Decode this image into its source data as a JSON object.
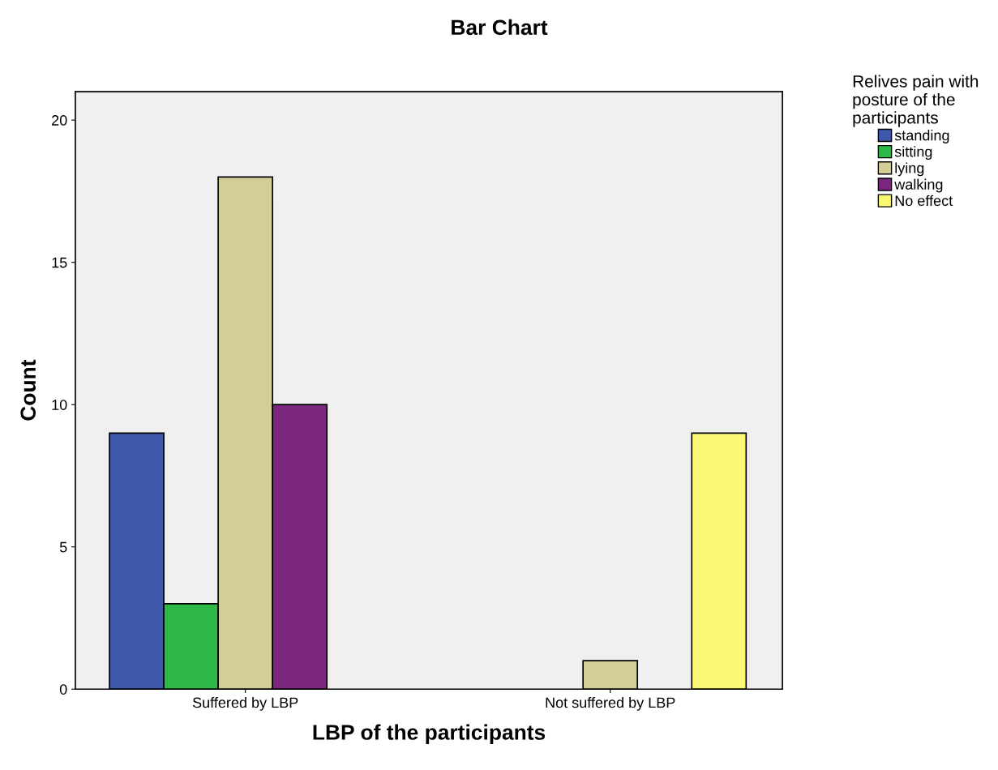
{
  "chart_data": {
    "type": "bar",
    "title": "Bar Chart",
    "xlabel": "LBP of the participants",
    "ylabel": "Count",
    "legend_title": "Relives pain with\nposture of the\nparticipants",
    "categories": [
      "Suffered by LBP",
      "Not suffered by LBP"
    ],
    "series": [
      {
        "name": "standing",
        "color": "#3e58ac",
        "values": [
          9,
          null
        ]
      },
      {
        "name": "sitting",
        "color": "#2eb848",
        "values": [
          3,
          null
        ]
      },
      {
        "name": "lying",
        "color": "#d3ce97",
        "values": [
          18,
          1
        ]
      },
      {
        "name": "walking",
        "color": "#7b277d",
        "values": [
          10,
          null
        ]
      },
      {
        "name": "No effect",
        "color": "#fbf873",
        "values": [
          null,
          9
        ]
      }
    ],
    "ylim": [
      0,
      21
    ],
    "yticks": [
      0,
      5,
      10,
      15,
      20
    ],
    "grid": false,
    "legend": "top right"
  }
}
